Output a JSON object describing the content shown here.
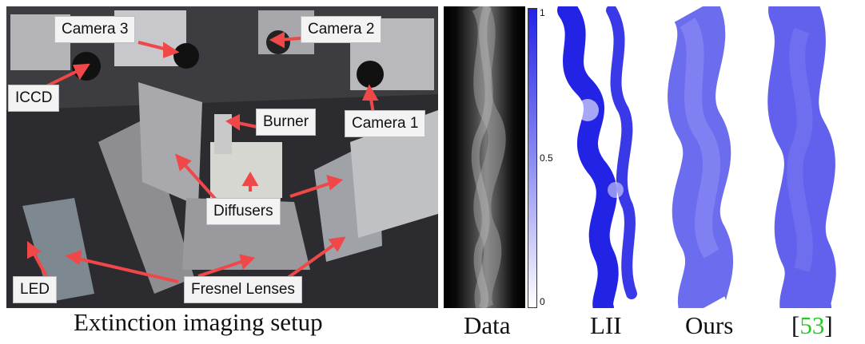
{
  "setup_photo": {
    "labels": {
      "camera3": "Camera 3",
      "camera2": "Camera 2",
      "camera1": "Camera 1",
      "iccd": "ICCD",
      "burner": "Burner",
      "diffusers": "Diffusers",
      "led": "LED",
      "fresnel": "Fresnel Lenses"
    },
    "arrow_color": "#f04848"
  },
  "colorbar": {
    "ticks": [
      "1",
      "0.5",
      "0"
    ],
    "color_top": "#2323e6"
  },
  "captions": {
    "setup": "Extinction imaging setup",
    "data": "Data",
    "lii": "LII",
    "ours": "Ours",
    "ref_open": "[",
    "ref_num": "53",
    "ref_close": "]"
  },
  "ref_color": "#22cc22"
}
